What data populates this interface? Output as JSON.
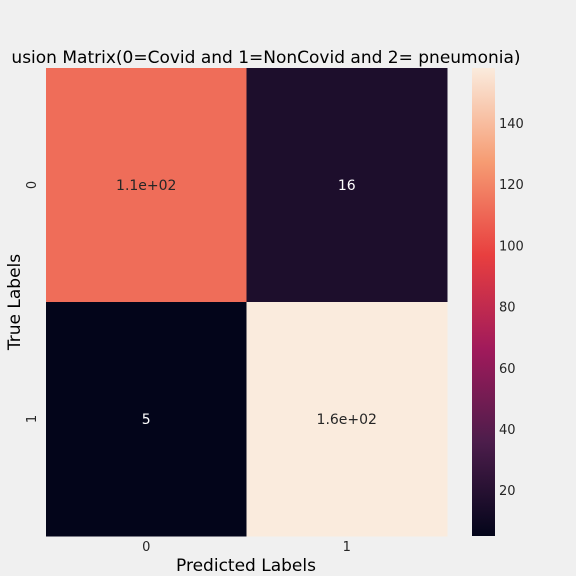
{
  "chart_data": {
    "type": "heatmap",
    "title": "usion Matrix(0=Covid and 1=NonCovid and 2= pneumonia)",
    "xlabel": "Predicted Labels",
    "ylabel": "True Labels",
    "x_categories": [
      "0",
      "1"
    ],
    "y_categories": [
      "0",
      "1"
    ],
    "values": [
      [
        112,
        16
      ],
      [
        5,
        158
      ]
    ],
    "annotations": [
      [
        "1.1e+02",
        "16"
      ],
      [
        "5",
        "1.6e+02"
      ]
    ],
    "colorbar": {
      "range": [
        5,
        158
      ],
      "ticks": [
        "20",
        "40",
        "60",
        "80",
        "100",
        "120",
        "140"
      ],
      "colormap": "rocket",
      "colors": [
        "#03051a",
        "#4c1d4b",
        "#a11a5b",
        "#e83f3f",
        "#f69c73",
        "#faebdd"
      ]
    },
    "background": "#f0f0f0"
  }
}
